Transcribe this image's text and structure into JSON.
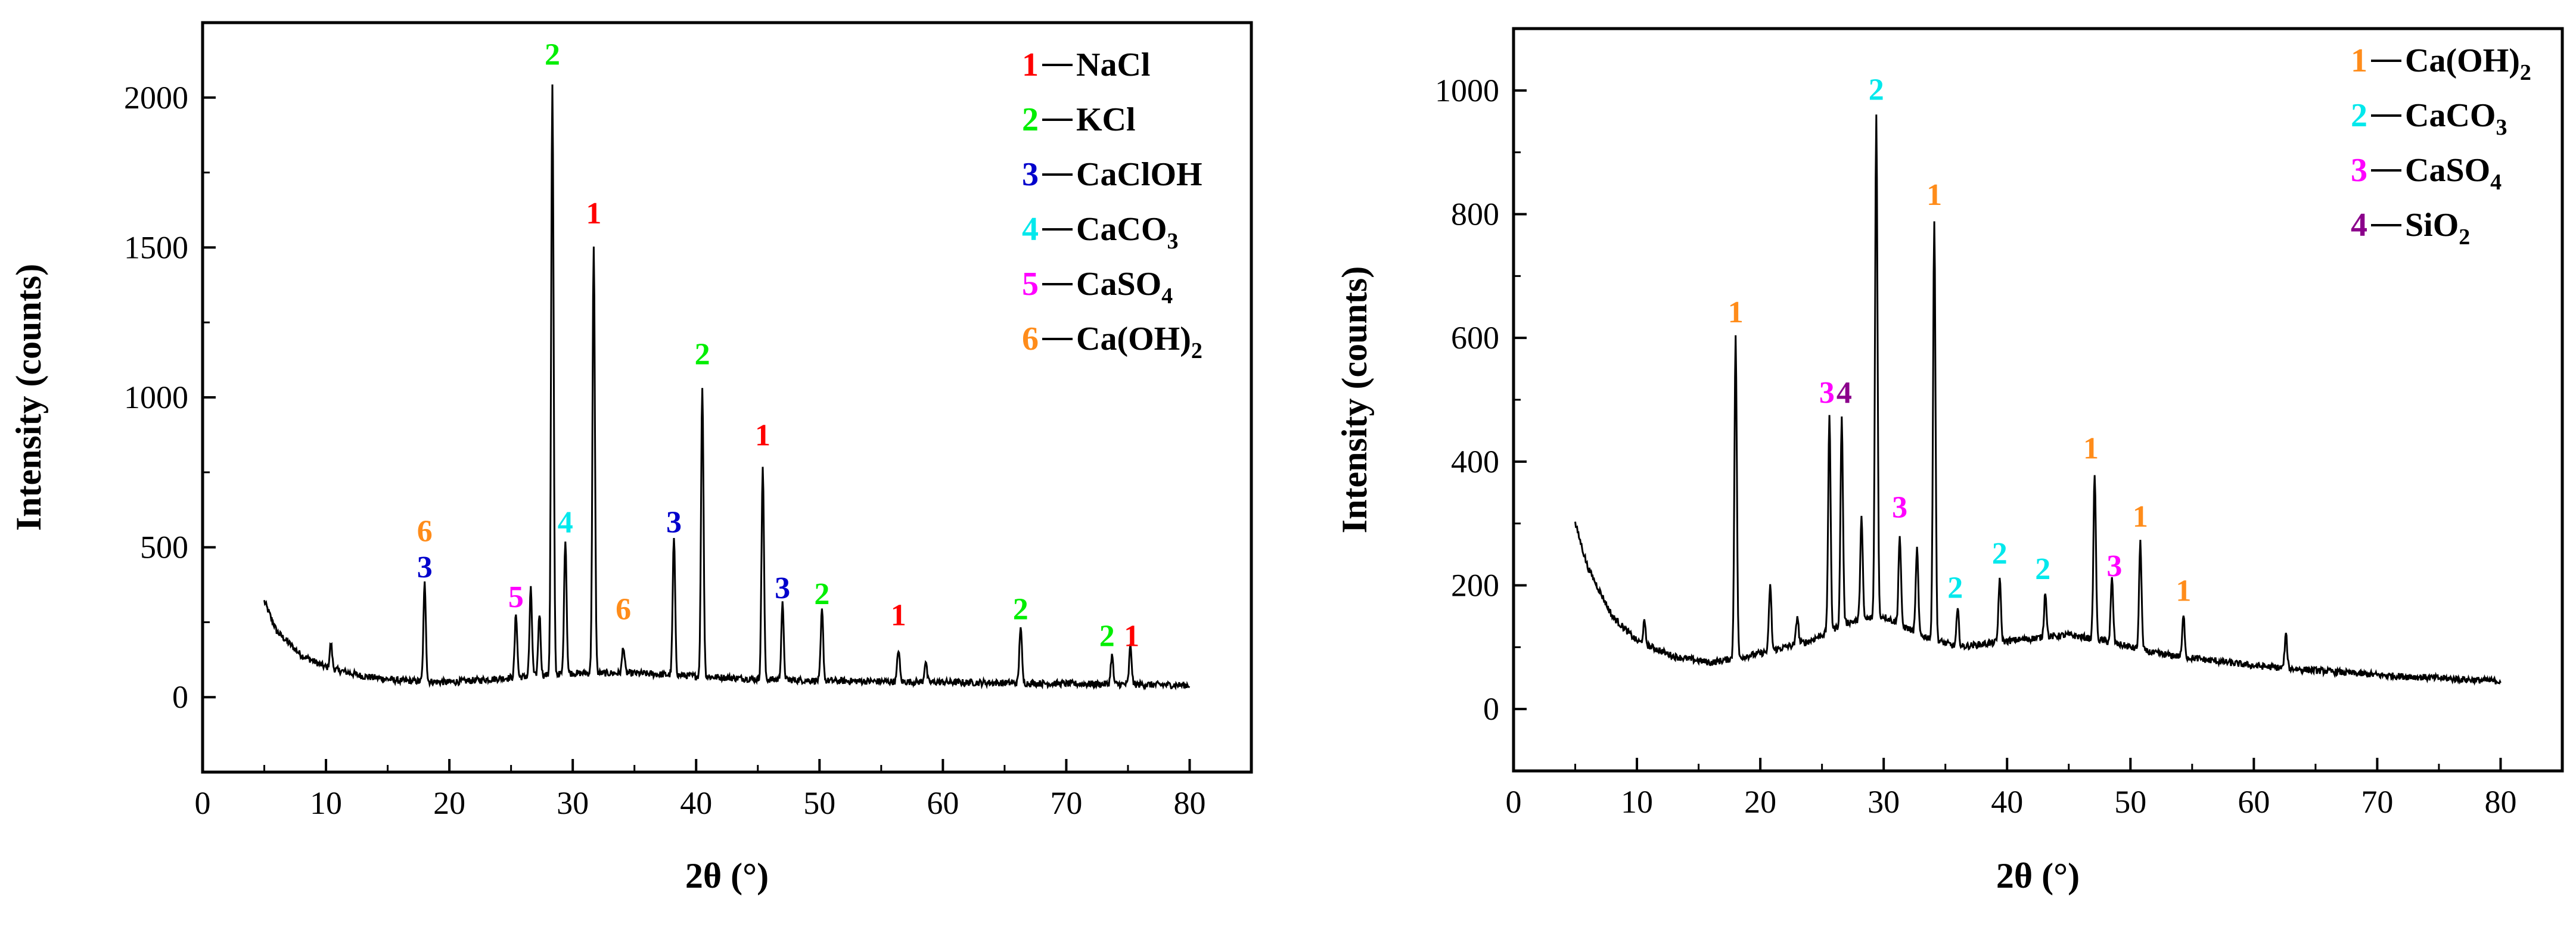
{
  "colors": {
    "red": "#ff0000",
    "green": "#00ee00",
    "blue": "#0000cc",
    "cyan": "#00e8ec",
    "magenta": "#ff00ff",
    "orange": "#ff8c1a",
    "purple": "#8b008b",
    "line": "#000000"
  },
  "chart_data": [
    {
      "type": "line",
      "xlabel": "2θ (°)",
      "ylabel": "Intensity (counts)",
      "xlim": [
        0,
        85
      ],
      "ylim": [
        -250,
        2250
      ],
      "xticks": [
        0,
        10,
        20,
        30,
        40,
        50,
        60,
        70,
        80
      ],
      "yticks": [
        0,
        500,
        1000,
        1500,
        2000
      ],
      "legend_position": "top-right",
      "legend": [
        {
          "num": "1",
          "name": "NaCl",
          "color": "red"
        },
        {
          "num": "2",
          "name": "KCl",
          "color": "green"
        },
        {
          "num": "3",
          "name": "CaClOH",
          "color": "blue"
        },
        {
          "num": "4",
          "name": "CaCO",
          "sub": "3",
          "color": "cyan"
        },
        {
          "num": "5",
          "name": "CaSO",
          "sub": "4",
          "color": "magenta"
        },
        {
          "num": "6",
          "name": "Ca(OH)",
          "sub": "2",
          "color": "orange"
        }
      ],
      "baseline": [
        [
          5,
          320
        ],
        [
          6,
          220
        ],
        [
          8,
          140
        ],
        [
          10,
          100
        ],
        [
          13,
          70
        ],
        [
          16,
          55
        ],
        [
          20,
          50
        ],
        [
          25,
          65
        ],
        [
          30,
          80
        ],
        [
          35,
          80
        ],
        [
          40,
          70
        ],
        [
          45,
          60
        ],
        [
          50,
          55
        ],
        [
          60,
          50
        ],
        [
          70,
          45
        ],
        [
          80,
          40
        ]
      ],
      "peaks": [
        {
          "x": 10.4,
          "y": 180
        },
        {
          "x": 18.0,
          "y": 380
        },
        {
          "x": 25.4,
          "y": 280
        },
        {
          "x": 26.6,
          "y": 360
        },
        {
          "x": 27.3,
          "y": 280
        },
        {
          "x": 28.35,
          "y": 2040
        },
        {
          "x": 29.4,
          "y": 530
        },
        {
          "x": 31.7,
          "y": 1500
        },
        {
          "x": 34.1,
          "y": 170
        },
        {
          "x": 38.2,
          "y": 530
        },
        {
          "x": 40.5,
          "y": 1040
        },
        {
          "x": 45.4,
          "y": 770
        },
        {
          "x": 47.0,
          "y": 310
        },
        {
          "x": 50.2,
          "y": 290
        },
        {
          "x": 56.4,
          "y": 160
        },
        {
          "x": 58.6,
          "y": 120
        },
        {
          "x": 66.3,
          "y": 240
        },
        {
          "x": 73.7,
          "y": 140
        },
        {
          "x": 75.2,
          "y": 170
        }
      ],
      "annotations": [
        {
          "text": "2",
          "x": 28.35,
          "y": 2110,
          "color": "green"
        },
        {
          "text": "1",
          "x": 31.7,
          "y": 1580,
          "color": "red"
        },
        {
          "text": "2",
          "x": 40.5,
          "y": 1110,
          "color": "green"
        },
        {
          "text": "1",
          "x": 45.4,
          "y": 840,
          "color": "red"
        },
        {
          "text": "6",
          "x": 18.0,
          "y": 520,
          "color": "orange"
        },
        {
          "text": "3",
          "x": 18.0,
          "y": 400,
          "color": "blue"
        },
        {
          "text": "5",
          "x": 25.4,
          "y": 300,
          "color": "magenta"
        },
        {
          "text": "4",
          "x": 29.4,
          "y": 550,
          "color": "cyan"
        },
        {
          "text": "6",
          "x": 34.1,
          "y": 260,
          "color": "orange"
        },
        {
          "text": "3",
          "x": 38.2,
          "y": 550,
          "color": "blue"
        },
        {
          "text": "3",
          "x": 47.0,
          "y": 330,
          "color": "blue"
        },
        {
          "text": "2",
          "x": 50.2,
          "y": 310,
          "color": "green"
        },
        {
          "text": "1",
          "x": 56.4,
          "y": 240,
          "color": "red"
        },
        {
          "text": "2",
          "x": 66.3,
          "y": 260,
          "color": "green"
        },
        {
          "text": "2",
          "x": 73.3,
          "y": 170,
          "color": "green"
        },
        {
          "text": "1",
          "x": 75.3,
          "y": 170,
          "color": "red"
        }
      ]
    },
    {
      "type": "line",
      "xlabel": "2θ (°)",
      "ylabel": "Intensity (counts)",
      "xlim": [
        0,
        85
      ],
      "ylim": [
        -100,
        1100
      ],
      "xticks": [
        0,
        10,
        20,
        30,
        40,
        50,
        60,
        70,
        80
      ],
      "yticks": [
        0,
        200,
        400,
        600,
        800,
        1000
      ],
      "legend_position": "top-right",
      "legend": [
        {
          "num": "1",
          "name": "Ca(OH)",
          "sub": "2",
          "color": "orange"
        },
        {
          "num": "2",
          "name": "CaCO",
          "sub": "3",
          "color": "cyan"
        },
        {
          "num": "3",
          "name": "CaSO",
          "sub": "4",
          "color": "magenta"
        },
        {
          "num": "4",
          "name": "SiO",
          "sub": "2",
          "color": "purple"
        }
      ],
      "baseline": [
        [
          5,
          300
        ],
        [
          6,
          230
        ],
        [
          8,
          150
        ],
        [
          10,
          110
        ],
        [
          13,
          85
        ],
        [
          16,
          75
        ],
        [
          20,
          90
        ],
        [
          24,
          110
        ],
        [
          27,
          140
        ],
        [
          30,
          150
        ],
        [
          33,
          120
        ],
        [
          36,
          100
        ],
        [
          40,
          110
        ],
        [
          45,
          120
        ],
        [
          48,
          110
        ],
        [
          52,
          90
        ],
        [
          60,
          70
        ],
        [
          70,
          55
        ],
        [
          80,
          45
        ]
      ],
      "peaks": [
        {
          "x": 10.6,
          "y": 140
        },
        {
          "x": 18.0,
          "y": 600
        },
        {
          "x": 20.8,
          "y": 200
        },
        {
          "x": 23.0,
          "y": 150
        },
        {
          "x": 25.6,
          "y": 470
        },
        {
          "x": 26.6,
          "y": 470
        },
        {
          "x": 28.2,
          "y": 310
        },
        {
          "x": 29.4,
          "y": 960
        },
        {
          "x": 31.3,
          "y": 280
        },
        {
          "x": 32.7,
          "y": 260
        },
        {
          "x": 34.1,
          "y": 790
        },
        {
          "x": 36.0,
          "y": 160
        },
        {
          "x": 39.4,
          "y": 210
        },
        {
          "x": 43.1,
          "y": 190
        },
        {
          "x": 47.1,
          "y": 380
        },
        {
          "x": 48.5,
          "y": 210
        },
        {
          "x": 50.8,
          "y": 270
        },
        {
          "x": 54.3,
          "y": 150
        },
        {
          "x": 62.6,
          "y": 120
        }
      ],
      "annotations": [
        {
          "text": "2",
          "x": 29.4,
          "y": 985,
          "color": "cyan"
        },
        {
          "text": "1",
          "x": 34.1,
          "y": 815,
          "color": "orange"
        },
        {
          "text": "1",
          "x": 18.0,
          "y": 625,
          "color": "orange"
        },
        {
          "text": "3",
          "x": 25.4,
          "y": 495,
          "color": "magenta"
        },
        {
          "text": "4",
          "x": 26.8,
          "y": 495,
          "color": "purple"
        },
        {
          "text": "3",
          "x": 31.3,
          "y": 310,
          "color": "magenta"
        },
        {
          "text": "2",
          "x": 35.8,
          "y": 180,
          "color": "cyan"
        },
        {
          "text": "2",
          "x": 39.4,
          "y": 235,
          "color": "cyan"
        },
        {
          "text": "2",
          "x": 42.9,
          "y": 210,
          "color": "cyan"
        },
        {
          "text": "1",
          "x": 46.8,
          "y": 405,
          "color": "orange"
        },
        {
          "text": "3",
          "x": 48.7,
          "y": 215,
          "color": "magenta"
        },
        {
          "text": "1",
          "x": 50.8,
          "y": 295,
          "color": "orange"
        },
        {
          "text": "1",
          "x": 54.3,
          "y": 175,
          "color": "orange"
        }
      ]
    }
  ]
}
